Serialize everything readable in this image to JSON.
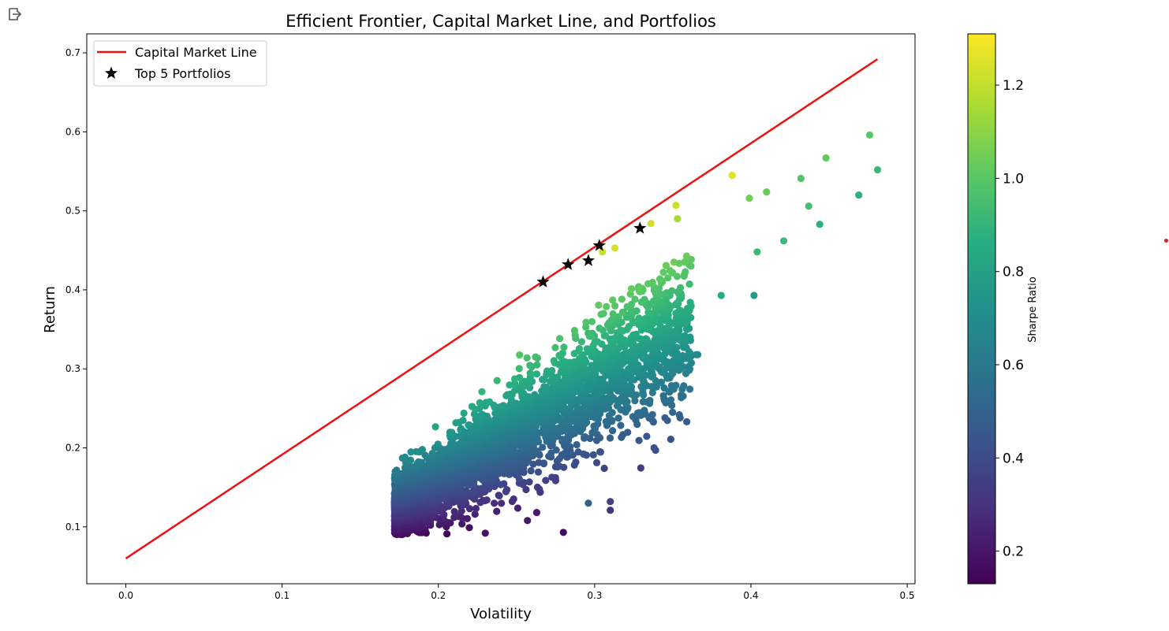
{
  "icons": {
    "output": "output-exit-icon"
  },
  "chart_data": {
    "type": "scatter",
    "title": "Efficient Frontier, Capital Market Line, and Portfolios",
    "xlabel": "Volatility",
    "ylabel": "Return",
    "xlim": [
      -0.025,
      0.505
    ],
    "ylim": [
      0.028,
      0.724
    ],
    "x_ticks": [
      0.0,
      0.1,
      0.2,
      0.3,
      0.4,
      0.5
    ],
    "x_tick_labels": [
      "0.0",
      "0.1",
      "0.2",
      "0.3",
      "0.4",
      "0.5"
    ],
    "y_ticks": [
      0.1,
      0.2,
      0.3,
      0.4,
      0.5,
      0.6,
      0.7
    ],
    "y_tick_labels": [
      "0.1",
      "0.2",
      "0.3",
      "0.4",
      "0.5",
      "0.6",
      "0.7"
    ],
    "grid": false,
    "legend": {
      "placement": "top-left",
      "entries": [
        "Capital Market Line",
        "Top 5 Portfolios"
      ]
    },
    "colorbar": {
      "label": "Sharpe Ratio",
      "colormap": "viridis",
      "range": [
        0.13,
        1.31
      ],
      "ticks": [
        0.2,
        0.4,
        0.6,
        0.8,
        1.0,
        1.2
      ],
      "tick_labels": [
        "0.2",
        "0.4",
        "0.6",
        "0.8",
        "1.0",
        "1.2"
      ]
    },
    "cml": {
      "name": "Capital Market Line",
      "color": "#ee1111",
      "x": [
        0.0,
        0.481
      ],
      "y": [
        0.06,
        0.692
      ]
    },
    "top5": {
      "name": "Top 5 Portfolios",
      "color": "#000000",
      "x": [
        0.267,
        0.283,
        0.296,
        0.303,
        0.329
      ],
      "y": [
        0.41,
        0.432,
        0.437,
        0.456,
        0.478
      ]
    },
    "portfolios": {
      "count": 3500,
      "note_visible_outliers": true,
      "x": [
        0.476,
        0.481,
        0.448,
        0.469,
        0.388,
        0.432,
        0.41,
        0.437,
        0.444,
        0.352,
        0.336,
        0.399,
        0.353,
        0.305,
        0.313,
        0.421,
        0.402,
        0.404,
        0.381,
        0.365,
        0.296,
        0.366,
        0.339,
        0.344,
        0.345,
        0.338,
        0.31,
        0.31,
        0.257,
        0.28,
        0.23
      ],
      "y": [
        0.596,
        0.552,
        0.567,
        0.52,
        0.545,
        0.541,
        0.524,
        0.506,
        0.483,
        0.507,
        0.484,
        0.516,
        0.49,
        0.448,
        0.453,
        0.462,
        0.393,
        0.448,
        0.393,
        0.318,
        0.13,
        0.318,
        0.197,
        0.266,
        0.238,
        0.2,
        0.132,
        0.121,
        0.108,
        0.093,
        0.092
      ],
      "sharpe": [
        1.0,
        0.92,
        1.02,
        0.88,
        1.25,
        0.98,
        1.03,
        0.95,
        0.88,
        1.22,
        1.22,
        1.05,
        1.15,
        1.22,
        1.23,
        0.92,
        0.78,
        0.92,
        0.85,
        0.68,
        0.5,
        0.68,
        0.4,
        0.55,
        0.48,
        0.42,
        0.35,
        0.3,
        0.2,
        0.17,
        0.18
      ]
    }
  }
}
